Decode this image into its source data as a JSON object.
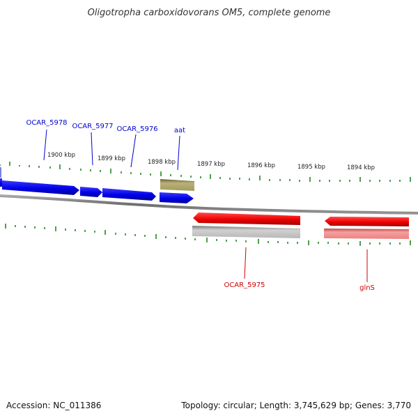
{
  "title": "Oligotropha carboxidovorans OM5, complete genome",
  "footer": {
    "accession": "Accession: NC_011386",
    "summary": "Topology: circular; Length: 3,745,629 bp; Genes: 3,770"
  },
  "scale_labels": [
    "1900 kbp",
    "1899 kbp",
    "1898 kbp",
    "1897 kbp",
    "1896 kbp",
    "1895 kbp",
    "1894 kbp"
  ],
  "gene_labels": {
    "forward": [
      "OCAR_5978",
      "OCAR_5977",
      "OCAR_5976",
      "aat"
    ],
    "reverse": [
      "OCAR_5975",
      "glnS"
    ]
  },
  "colors": {
    "forward": "#0000ee",
    "reverse": "#ee0000",
    "forward_label": "#0000cc",
    "reverse_label": "#cc0000",
    "ticks": "#228822",
    "backbone": "#808080",
    "rna": "#a39b5c",
    "pseudo": "#bdbdbd",
    "pink": "#f08080"
  }
}
